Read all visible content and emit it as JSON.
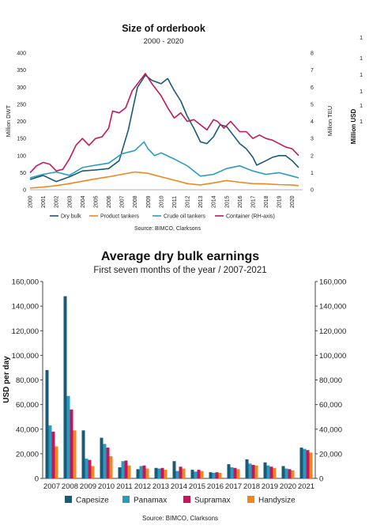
{
  "chart_data": [
    {
      "type": "line",
      "title": "Size of orderbook",
      "subtitle": "2000 - 2020",
      "ylabel": "Million DWT",
      "y2label": "Million TEU",
      "ylim": [
        0,
        400
      ],
      "y2lim": [
        0,
        8
      ],
      "yticks": [
        0,
        50,
        100,
        150,
        200,
        250,
        300,
        350,
        400
      ],
      "y2ticks": [
        0,
        1,
        2,
        3,
        4,
        5,
        6,
        7,
        8
      ],
      "xlim": [
        2000,
        2020.8
      ],
      "xticks": [
        "2000",
        "2001",
        "2002",
        "2003",
        "2004",
        "2005",
        "2006",
        "2007",
        "2008",
        "2009",
        "2010",
        "2011",
        "2012",
        "2013",
        "2014",
        "2015",
        "2016",
        "2017",
        "2018",
        "2019",
        "2020"
      ],
      "legend_position": "bottom",
      "source": "Source: BIMCO, Clarksons",
      "series": [
        {
          "name": "Dry bulk",
          "color": "#1a5a74",
          "axis": "left",
          "x": [
            2000,
            2001,
            2002,
            2003,
            2004,
            2005,
            2006,
            2006.8,
            2007.5,
            2008.2,
            2008.8,
            2009.3,
            2010,
            2010.5,
            2011,
            2011.5,
            2012,
            2012.5,
            2013,
            2013.5,
            2014,
            2014.5,
            2015,
            2015.5,
            2016,
            2016.5,
            2017,
            2017.3,
            2018,
            2018.5,
            2019,
            2019.5,
            2020,
            2020.5
          ],
          "y": [
            30,
            42,
            24,
            38,
            55,
            58,
            62,
            85,
            175,
            300,
            335,
            320,
            310,
            325,
            290,
            260,
            215,
            180,
            140,
            135,
            155,
            190,
            185,
            160,
            135,
            120,
            95,
            72,
            85,
            95,
            100,
            100,
            85,
            65
          ]
        },
        {
          "name": "Product tankers",
          "color": "#f0861f",
          "axis": "left",
          "x": [
            2000,
            2001,
            2002,
            2003,
            2004,
            2005,
            2006,
            2007,
            2008,
            2009,
            2010,
            2011,
            2012,
            2013,
            2014,
            2015,
            2016,
            2017,
            2018,
            2019,
            2020,
            2020.5
          ],
          "y": [
            5,
            8,
            12,
            18,
            25,
            32,
            38,
            45,
            52,
            48,
            38,
            28,
            18,
            14,
            20,
            27,
            22,
            18,
            17,
            15,
            14,
            12
          ]
        },
        {
          "name": "Crude oil tankers",
          "color": "#2a9bbf",
          "axis": "left",
          "x": [
            2000,
            2001,
            2002,
            2003,
            2004,
            2005,
            2006,
            2007,
            2008,
            2008.7,
            2009,
            2009.5,
            2010,
            2011,
            2012,
            2013,
            2014,
            2015,
            2016,
            2017,
            2018,
            2019,
            2020,
            2020.5
          ],
          "y": [
            35,
            45,
            52,
            42,
            65,
            72,
            78,
            105,
            115,
            140,
            120,
            100,
            108,
            90,
            70,
            40,
            45,
            62,
            70,
            55,
            45,
            50,
            40,
            35
          ]
        },
        {
          "name": "Container (RH-axis)",
          "color": "#c2185b",
          "axis": "right",
          "x": [
            2000,
            2000.5,
            2001,
            2001.5,
            2002,
            2002.5,
            2003,
            2003.5,
            2004,
            2004.5,
            2005,
            2005.5,
            2006,
            2006.3,
            2006.8,
            2007.3,
            2007.8,
            2008.3,
            2008.8,
            2009.3,
            2010,
            2010.5,
            2011,
            2011.5,
            2012,
            2012.5,
            2013,
            2013.5,
            2014,
            2014.3,
            2014.8,
            2015.3,
            2016,
            2016.5,
            2017,
            2017.5,
            2018,
            2018.5,
            2019,
            2019.5,
            2020,
            2020.5
          ],
          "y": [
            1.0,
            1.4,
            1.6,
            1.5,
            1.1,
            1.2,
            1.8,
            2.6,
            3.0,
            2.6,
            3.0,
            3.1,
            3.6,
            4.6,
            4.5,
            4.8,
            5.8,
            6.3,
            6.8,
            6.2,
            5.5,
            4.8,
            4.2,
            4.5,
            4.0,
            4.1,
            3.8,
            3.5,
            4.1,
            4.0,
            3.6,
            4.0,
            3.4,
            3.4,
            3.0,
            3.2,
            3.0,
            2.9,
            2.7,
            2.5,
            2.4,
            2.0
          ]
        }
      ]
    },
    {
      "type": "bar",
      "title": "Average dry bulk earnings",
      "subtitle": "First seven months of the year / 2007-2021",
      "ylabel": "USD per day",
      "ylim": [
        0,
        160000
      ],
      "yticks": [
        "0",
        "20,000",
        "40,000",
        "60,000",
        "80,000",
        "100,000",
        "120,000",
        "140,000",
        "160,000"
      ],
      "legend_position": "bottom",
      "source": "Source: BIMCO, Clarksons",
      "categories": [
        "2007",
        "2008",
        "2009",
        "2010",
        "2011",
        "2012",
        "2013",
        "2014",
        "2015",
        "2016",
        "2017",
        "2018",
        "2019",
        "2020",
        "2021"
      ],
      "series": [
        {
          "name": "Capesize",
          "color": "#1a5a74",
          "values": [
            88000,
            148000,
            39000,
            33000,
            9000,
            7500,
            8500,
            14000,
            7000,
            5000,
            11500,
            15500,
            13000,
            10000,
            25000
          ]
        },
        {
          "name": "Panamax",
          "color": "#2a9bbf",
          "values": [
            43000,
            67000,
            16000,
            28000,
            14000,
            10000,
            8000,
            6000,
            5500,
            4500,
            9000,
            12000,
            10500,
            8000,
            24000
          ]
        },
        {
          "name": "Supramax",
          "color": "#c2185b",
          "values": [
            38000,
            56000,
            15000,
            25000,
            14500,
            10500,
            8500,
            9500,
            7000,
            5000,
            8500,
            11000,
            9500,
            7500,
            23000
          ]
        },
        {
          "name": "Handysize",
          "color": "#f0861f",
          "values": [
            26000,
            39000,
            10000,
            18000,
            10500,
            8000,
            7000,
            8000,
            6000,
            4500,
            7500,
            10500,
            8500,
            6500,
            21000
          ]
        }
      ]
    }
  ],
  "right_cutoff": {
    "label": "Million USD",
    "fragments": [
      "1",
      "1",
      "1",
      "1",
      "1",
      "1"
    ]
  }
}
